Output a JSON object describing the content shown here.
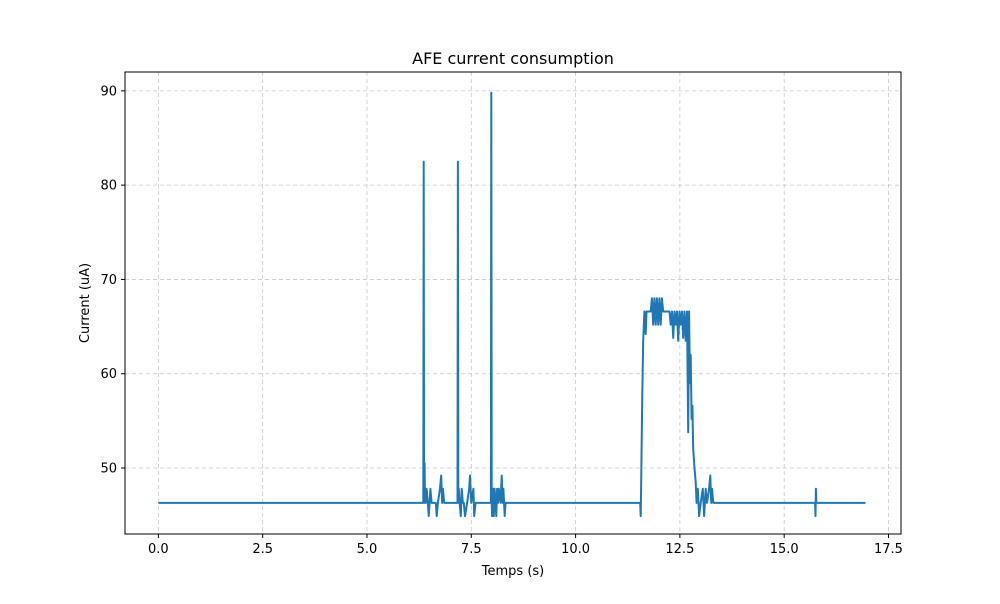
{
  "chart_data": {
    "type": "line",
    "title": "AFE current consumption",
    "xlabel": "Temps (s)",
    "ylabel": "Current (uA)",
    "xlim": [
      -0.8,
      17.8
    ],
    "ylim": [
      43.0,
      92.0
    ],
    "x_ticks": [
      0.0,
      2.5,
      5.0,
      7.5,
      10.0,
      12.5,
      15.0,
      17.5
    ],
    "x_tick_labels": [
      "0.0",
      "2.5",
      "5.0",
      "7.5",
      "10.0",
      "12.5",
      "15.0",
      "17.5"
    ],
    "y_ticks": [
      50,
      60,
      70,
      80,
      90
    ],
    "y_tick_labels": [
      "50",
      "60",
      "70",
      "80",
      "90"
    ],
    "grid": true,
    "line_color": "#1f77b4",
    "series": [
      {
        "x": [
          0.0,
          6.35,
          6.36,
          6.37,
          6.38,
          6.39,
          6.4,
          6.41,
          6.43,
          6.46,
          6.48,
          6.5,
          6.52,
          6.55,
          6.57,
          6.6,
          6.65,
          6.67,
          6.7,
          6.75,
          6.78,
          6.8,
          6.82,
          6.85,
          6.9,
          7.17,
          7.18,
          7.19,
          7.2,
          7.22,
          7.25,
          7.27,
          7.3,
          7.32,
          7.35,
          7.4,
          7.45,
          7.47,
          7.5,
          7.55,
          7.57,
          7.6,
          7.62,
          7.65,
          7.97,
          7.98,
          7.99,
          8.0,
          8.02,
          8.04,
          8.06,
          8.08,
          8.1,
          8.12,
          8.14,
          8.16,
          8.2,
          8.23,
          8.25,
          8.27,
          8.3,
          8.32,
          11.55,
          11.56,
          11.57,
          11.6,
          11.62,
          11.65,
          11.68,
          11.7,
          11.75,
          11.8,
          11.83,
          11.86,
          11.89,
          11.92,
          11.95,
          11.98,
          12.01,
          12.04,
          12.07,
          12.1,
          12.13,
          12.16,
          12.2,
          12.25,
          12.28,
          12.31,
          12.34,
          12.37,
          12.4,
          12.43,
          12.46,
          12.49,
          12.52,
          12.55,
          12.58,
          12.61,
          12.64,
          12.67,
          12.7,
          12.72,
          12.74,
          12.76,
          12.78,
          12.8,
          12.82,
          12.85,
          12.88,
          12.9,
          12.93,
          12.96,
          13.0,
          13.05,
          13.08,
          13.1,
          13.12,
          13.15,
          13.2,
          13.23,
          13.25,
          13.27,
          13.3,
          13.35,
          15.74,
          15.75,
          15.76,
          15.77,
          16.95
        ],
        "y": [
          46.3,
          46.3,
          82.5,
          46.3,
          50.5,
          46.3,
          47.8,
          46.3,
          47.8,
          46.3,
          44.9,
          46.3,
          47.8,
          46.3,
          46.3,
          46.3,
          46.3,
          44.9,
          46.3,
          47.8,
          49.2,
          46.3,
          47.8,
          46.3,
          46.3,
          46.3,
          82.5,
          46.3,
          47.8,
          46.3,
          44.9,
          47.8,
          46.3,
          46.3,
          44.9,
          46.3,
          47.8,
          49.2,
          46.3,
          47.8,
          44.9,
          46.3,
          46.3,
          46.3,
          46.3,
          89.8,
          46.3,
          44.9,
          47.8,
          44.9,
          47.8,
          46.3,
          44.9,
          47.8,
          46.3,
          47.8,
          46.3,
          49.2,
          46.3,
          47.8,
          44.9,
          46.3,
          46.3,
          44.9,
          47.8,
          58.0,
          63.5,
          66.6,
          64.2,
          66.6,
          66.6,
          66.6,
          68.0,
          65.2,
          68.0,
          65.2,
          68.0,
          65.2,
          68.0,
          65.2,
          68.0,
          66.6,
          66.6,
          66.6,
          66.6,
          66.6,
          65.2,
          66.6,
          63.8,
          66.6,
          65.2,
          66.6,
          63.5,
          66.6,
          65.2,
          66.6,
          63.8,
          66.6,
          63.5,
          66.6,
          53.8,
          66.6,
          59.0,
          62.0,
          55.2,
          56.6,
          52.0,
          50.0,
          48.5,
          46.3,
          47.8,
          44.9,
          46.3,
          47.8,
          44.9,
          46.3,
          47.8,
          46.3,
          47.8,
          49.2,
          46.3,
          47.8,
          46.3,
          46.3,
          46.3,
          44.9,
          47.8,
          46.3,
          46.3
        ]
      }
    ]
  }
}
